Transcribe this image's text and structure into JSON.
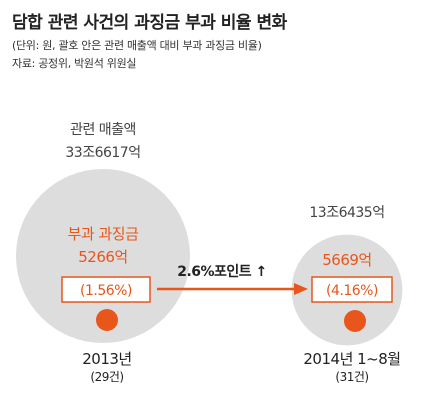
{
  "title": "담합 관련 사건의 과징금 부과 비율 변화",
  "unit_note": "(단위: 원, 괄호 안은 관련 매출액 대비 부과 과징금 비율)",
  "source_note": "자료: 공정위, 박원석 위원실",
  "chart_data": {
    "type": "bubble",
    "title": "담합 관련 사건의 과징금 부과 비율 변화",
    "groups": [
      {
        "period": "2013년",
        "cases": "(29건)",
        "sales_label": "관련 매출액",
        "sales": "33조6617억",
        "sales_value": 336617,
        "fine_label": "부과 과징금",
        "fine": "5266억",
        "fine_value": 5266,
        "ratio": "(1.56%)",
        "ratio_value": 1.56
      },
      {
        "period": "2014년 1~8월",
        "cases": "(31건)",
        "sales_label": "",
        "sales": "13조6435억",
        "sales_value": 136435,
        "fine_label": "",
        "fine": "5669억",
        "fine_value": 5669,
        "ratio": "(4.16%)",
        "ratio_value": 4.16
      }
    ],
    "change_label": "2.6%포인트",
    "change_arrow": "↑",
    "colors": {
      "bubble": "#dddddd",
      "accent": "#e8561b",
      "text": "#444444"
    }
  }
}
